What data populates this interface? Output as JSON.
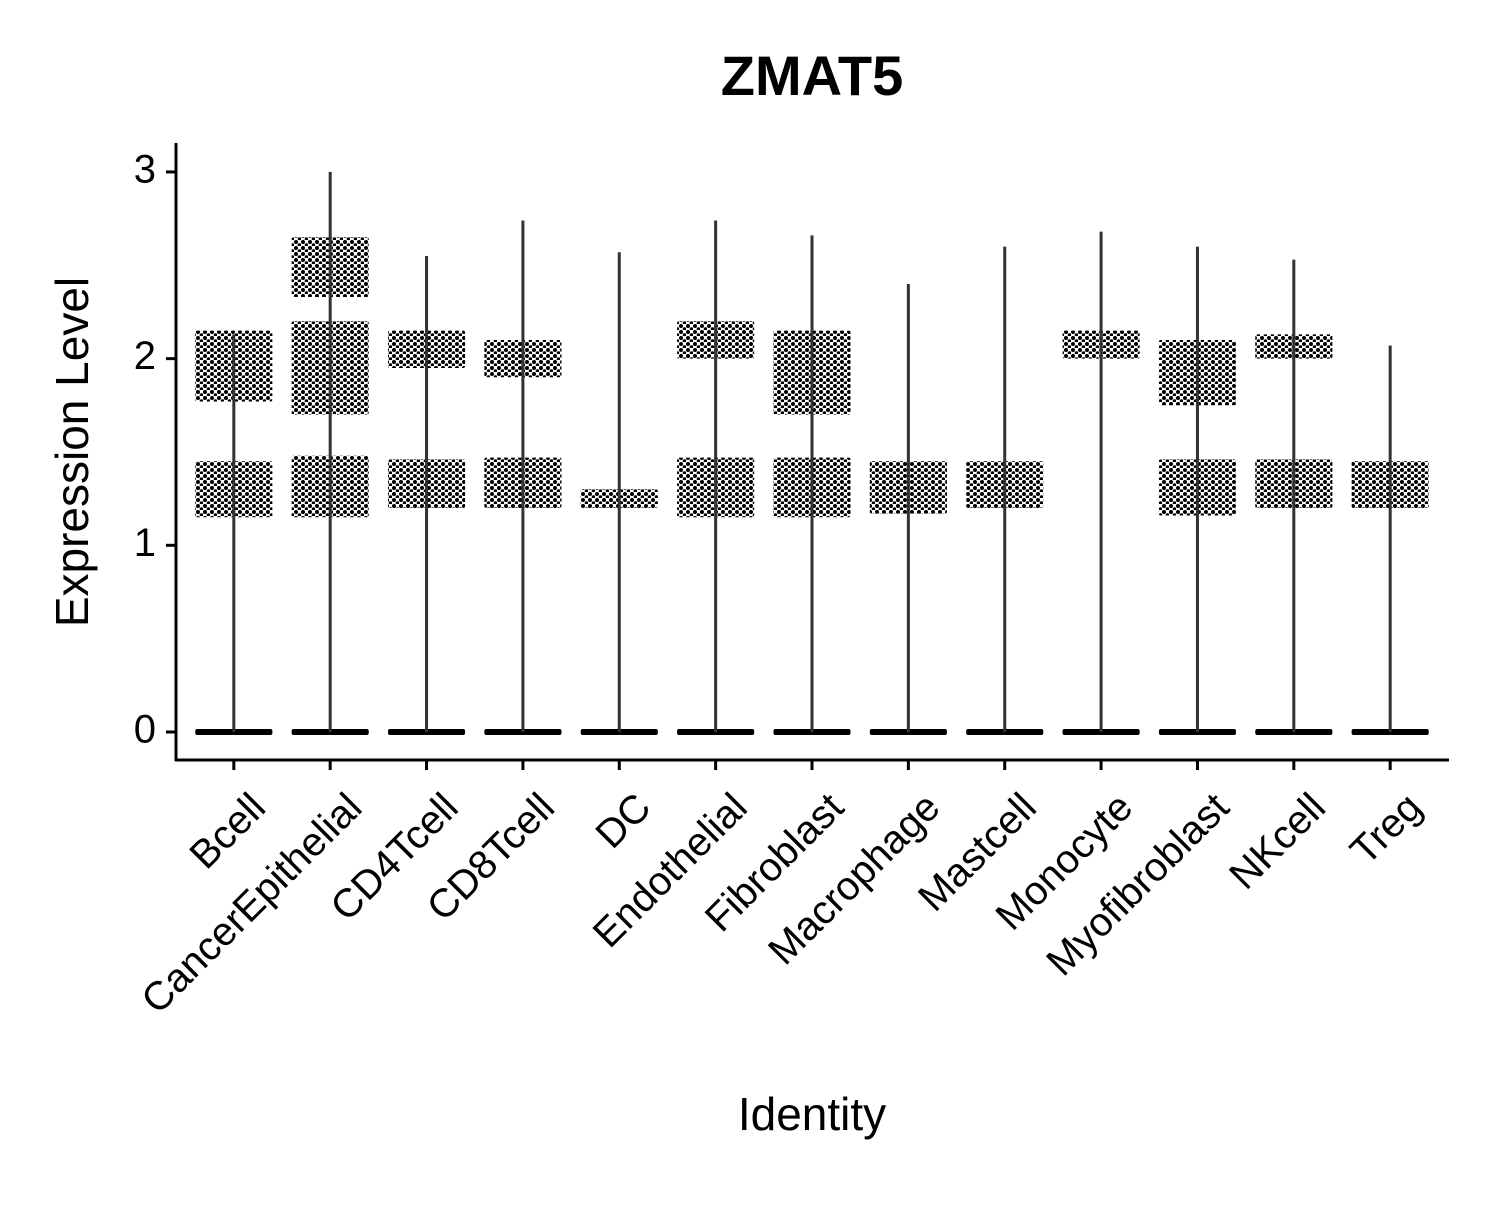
{
  "chart_data": {
    "type": "violin",
    "title": "ZMAT5",
    "x_label": "Identity",
    "y_label": "Expression Level",
    "categories": [
      "Bcell",
      "CancerEpithelial",
      "CD4Tcell",
      "CD8Tcell",
      "DC",
      "Endothelial",
      "Fibroblast",
      "Macrophage",
      "Mastcell",
      "Monocyte",
      "Myofibroblast",
      "NKcell",
      "Treg"
    ],
    "max": [
      2.13,
      3.0,
      2.55,
      2.74,
      2.57,
      2.74,
      2.66,
      2.4,
      2.6,
      2.68,
      2.6,
      2.53,
      2.07
    ],
    "bands": [
      [
        [
          0,
          0
        ],
        [
          1.15,
          1.45
        ],
        [
          1.77,
          2.15
        ]
      ],
      [
        [
          0,
          0
        ],
        [
          1.15,
          1.48
        ],
        [
          1.7,
          2.2
        ],
        [
          2.33,
          2.65
        ]
      ],
      [
        [
          0,
          0
        ],
        [
          1.2,
          1.46
        ],
        [
          1.95,
          2.15
        ]
      ],
      [
        [
          0,
          0
        ],
        [
          1.2,
          1.47
        ],
        [
          1.9,
          2.1
        ]
      ],
      [
        [
          0,
          0
        ],
        [
          1.2,
          1.3
        ]
      ],
      [
        [
          0,
          0
        ],
        [
          1.15,
          1.47
        ],
        [
          2.0,
          2.2
        ]
      ],
      [
        [
          0,
          0
        ],
        [
          1.15,
          1.47
        ],
        [
          1.7,
          2.15
        ]
      ],
      [
        [
          0,
          0
        ],
        [
          1.17,
          1.45
        ]
      ],
      [
        [
          0,
          0
        ],
        [
          1.2,
          1.45
        ]
      ],
      [
        [
          0,
          0
        ],
        [
          2.0,
          2.15
        ]
      ],
      [
        [
          0,
          0
        ],
        [
          1.16,
          1.46
        ],
        [
          1.75,
          2.1
        ]
      ],
      [
        [
          0,
          0
        ],
        [
          1.2,
          1.46
        ],
        [
          2.0,
          2.13
        ]
      ],
      [
        [
          0,
          0
        ],
        [
          1.2,
          1.45
        ]
      ]
    ],
    "color": "#000000",
    "ylim": [
      -0.15,
      3.155
    ],
    "yticks": [
      0,
      1,
      2,
      3
    ]
  }
}
